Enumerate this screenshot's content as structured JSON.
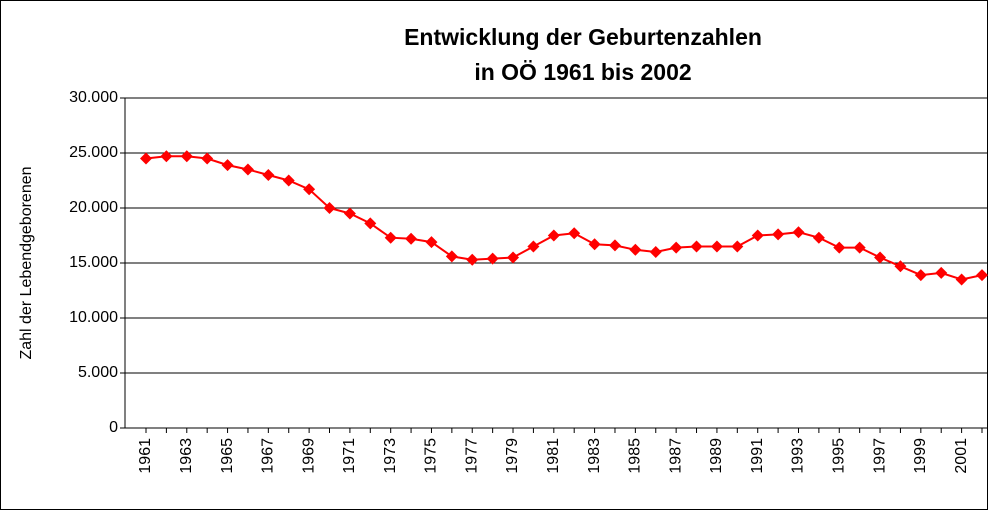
{
  "chart_data": {
    "type": "line",
    "title": "Entwicklung der Geburtenzahlen",
    "subtitle": "in OÖ 1961 bis 2002",
    "y_label": "Zahl der Lebendgeborenen",
    "categories": [
      "1961",
      null,
      "1963",
      null,
      "1965",
      null,
      "1967",
      null,
      "1969",
      null,
      "1971",
      null,
      "1973",
      null,
      "1975",
      null,
      "1977",
      null,
      "1979",
      null,
      "1981",
      null,
      "1983",
      null,
      "1985",
      null,
      "1987",
      null,
      "1989",
      null,
      "1991",
      null,
      "1993",
      null,
      "1995",
      null,
      "1997",
      null,
      "1999",
      null,
      "2001",
      null
    ],
    "series": [
      {
        "color": "#ff0000",
        "values": [
          24500,
          24700,
          24700,
          24500,
          23900,
          23500,
          23000,
          22500,
          21700,
          20000,
          19500,
          18600,
          17300,
          17200,
          16900,
          15600,
          15300,
          15400,
          15500,
          16500,
          17500,
          17700,
          16700,
          16600,
          16200,
          16000,
          16400,
          16500,
          16500,
          16500,
          17500,
          17600,
          17800,
          17300,
          16400,
          16400,
          15500,
          14700,
          13900,
          14100,
          13500,
          13900
        ]
      }
    ],
    "ylim": [
      0,
      30000
    ],
    "yticks": [
      0,
      {
        "value": 5000,
        "label": "5.000"
      },
      {
        "value": 10000,
        "label": "10.000"
      },
      {
        "value": 15000,
        "label": "15.000"
      },
      {
        "value": 20000,
        "label": "20.000"
      },
      {
        "value": 25000,
        "label": "25.000"
      },
      {
        "value": 30000,
        "label": "30.000"
      }
    ],
    "grid": true
  }
}
